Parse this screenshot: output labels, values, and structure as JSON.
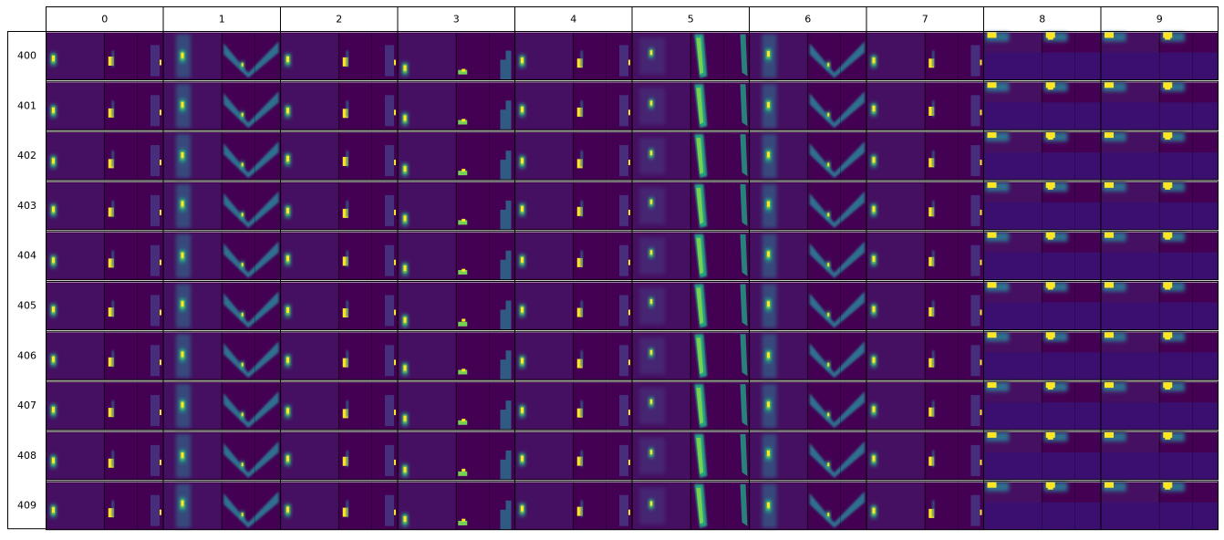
{
  "chart_data": {
    "type": "heatmap",
    "columns": [
      "0",
      "1",
      "2",
      "3",
      "4",
      "5",
      "6",
      "7",
      "8",
      "9"
    ],
    "rows": [
      "400",
      "401",
      "402",
      "403",
      "404",
      "405",
      "406",
      "407",
      "408",
      "409"
    ],
    "colormap": "viridis",
    "colors": {
      "background": "#440154",
      "dark": "#472e7c",
      "mid": "#2d708e",
      "teal": "#20a386",
      "green": "#75d054",
      "yellow": "#fde725",
      "line": "#000000"
    }
  }
}
